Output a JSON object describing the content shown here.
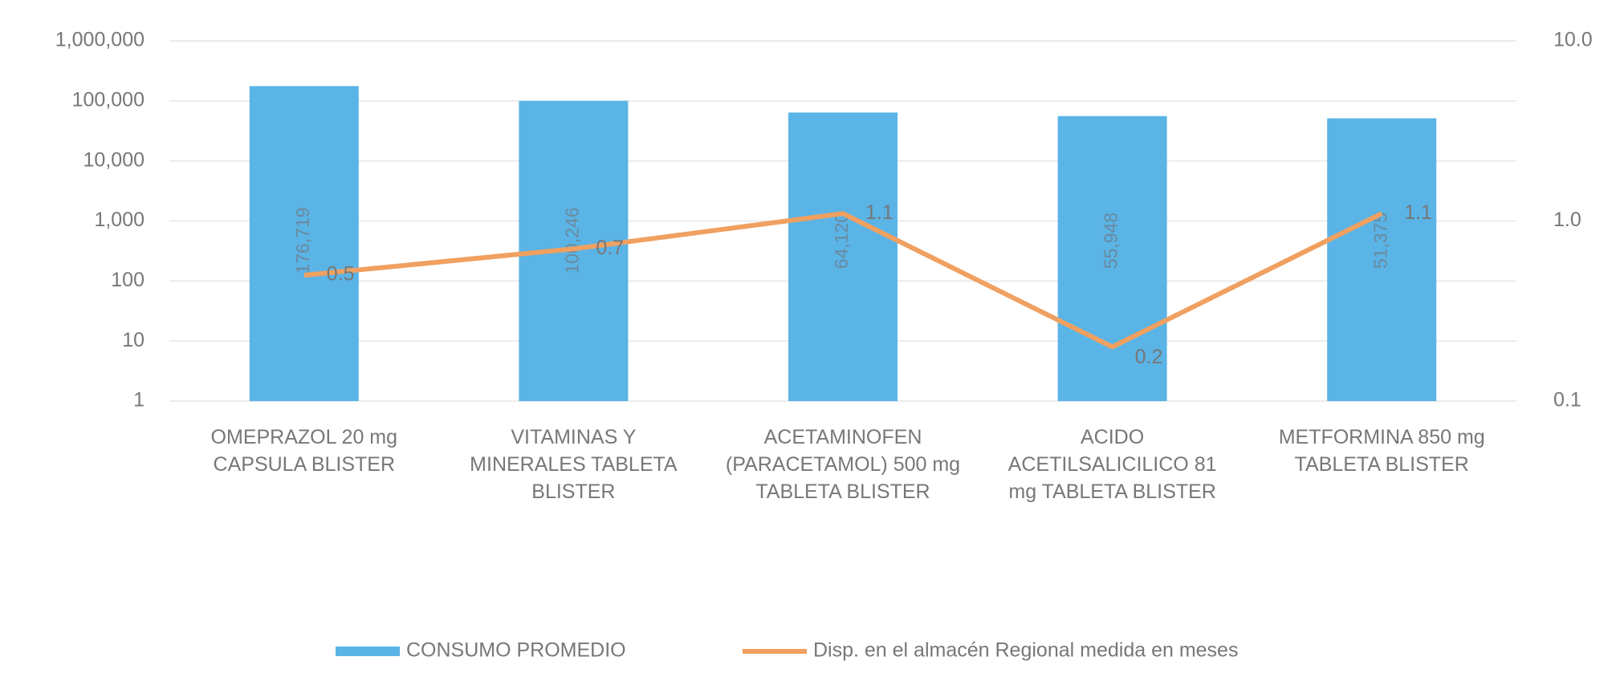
{
  "chart_data": {
    "type": "bar-line",
    "categories": [
      "OMEPRAZOL 20 mg CAPSULA BLISTER",
      "VITAMINAS Y MINERALES TABLETA BLISTER",
      "ACETAMINOFEN (PARACETAMOL) 500 mg TABLETA BLISTER",
      "ACIDO ACETILSALICILICO 81 mg TABLETA BLISTER",
      "METFORMINA 850 mg TABLETA BLISTER"
    ],
    "series": [
      {
        "name": "CONSUMO PROMEDIO",
        "color": "#5ab4e6",
        "values": [
          176719,
          100246,
          64120,
          55948,
          51375
        ],
        "value_labels": [
          "176,719",
          "100,246",
          "64,120",
          "55,948",
          "51,375"
        ]
      },
      {
        "name": "Disp. en el almacén Regional medida en meses",
        "color": "#f0a060",
        "axis": "y2",
        "values": [
          0.5,
          0.7,
          1.1,
          0.2,
          1.1
        ]
      }
    ],
    "ylim": [
      1,
      1000000
    ],
    "yticks": [
      {
        "value": 1000000,
        "label": "1,000,000"
      },
      {
        "value": 100000,
        "label": "100,000"
      },
      {
        "value": 10000,
        "label": "10,000"
      },
      {
        "value": 1000,
        "label": "1,000"
      },
      100,
      10,
      1
    ],
    "y2lim": [
      0.1,
      10
    ],
    "y2ticks": [
      {
        "value": 10,
        "label": "10.0"
      },
      {
        "value": 1,
        "label": "1.0"
      },
      0.1
    ],
    "log_scale": true,
    "grid": true,
    "legend": "bottom"
  }
}
